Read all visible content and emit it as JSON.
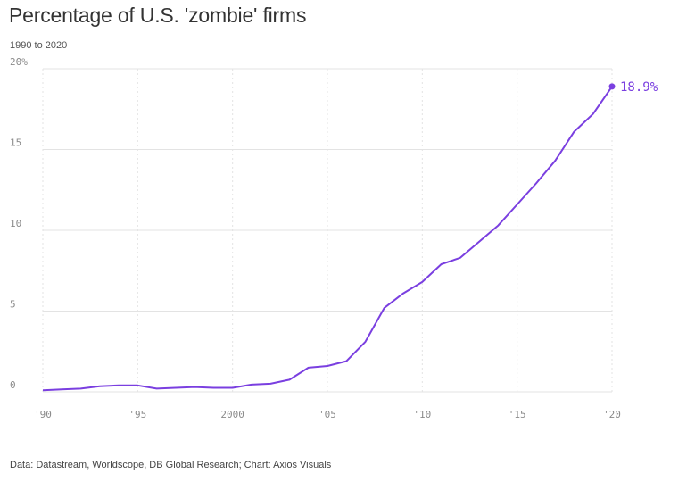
{
  "header": {
    "title": "Percentage of U.S. 'zombie' firms",
    "subtitle": "1990 to 2020"
  },
  "footer": {
    "source": "Data: Datastream, Worldscope, DB Global Research; Chart: Axios Visuals"
  },
  "colors": {
    "line": "#7a3fe0",
    "grid": "#e3e3e3",
    "axis_text": "#8a8a8a"
  },
  "chart_data": {
    "type": "line",
    "title": "Percentage of U.S. 'zombie' firms",
    "subtitle": "1990 to 2020",
    "xlabel": "",
    "ylabel": "",
    "grid": true,
    "xlim": [
      1990,
      2020
    ],
    "ylim": [
      0,
      20
    ],
    "x_ticks": [
      1990,
      1995,
      2000,
      2005,
      2010,
      2015,
      2020
    ],
    "x_tick_labels": [
      "'90",
      "'95",
      "2000",
      "'05",
      "'10",
      "'15",
      "'20"
    ],
    "y_ticks": [
      0,
      5,
      10,
      15,
      20
    ],
    "y_tick_labels": [
      "0",
      "5",
      "10",
      "15",
      "20%"
    ],
    "series": [
      {
        "x": [
          1990,
          1991,
          1992,
          1993,
          1994,
          1995,
          1996,
          1997,
          1998,
          1999,
          2000,
          2001,
          2002,
          2003,
          2004,
          2005,
          2006,
          2007,
          2008,
          2009,
          2010,
          2011,
          2012,
          2013,
          2014,
          2015,
          2016,
          2017,
          2018,
          2019,
          2020
        ],
        "values": [
          0.1,
          0.15,
          0.2,
          0.35,
          0.4,
          0.4,
          0.2,
          0.25,
          0.3,
          0.25,
          0.25,
          0.45,
          0.5,
          0.75,
          1.5,
          1.6,
          1.9,
          3.1,
          5.2,
          6.1,
          6.8,
          7.9,
          8.3,
          9.3,
          10.3,
          11.6,
          12.9,
          14.3,
          16.1,
          17.2,
          18.9
        ]
      }
    ],
    "end_label": "18.9%"
  }
}
